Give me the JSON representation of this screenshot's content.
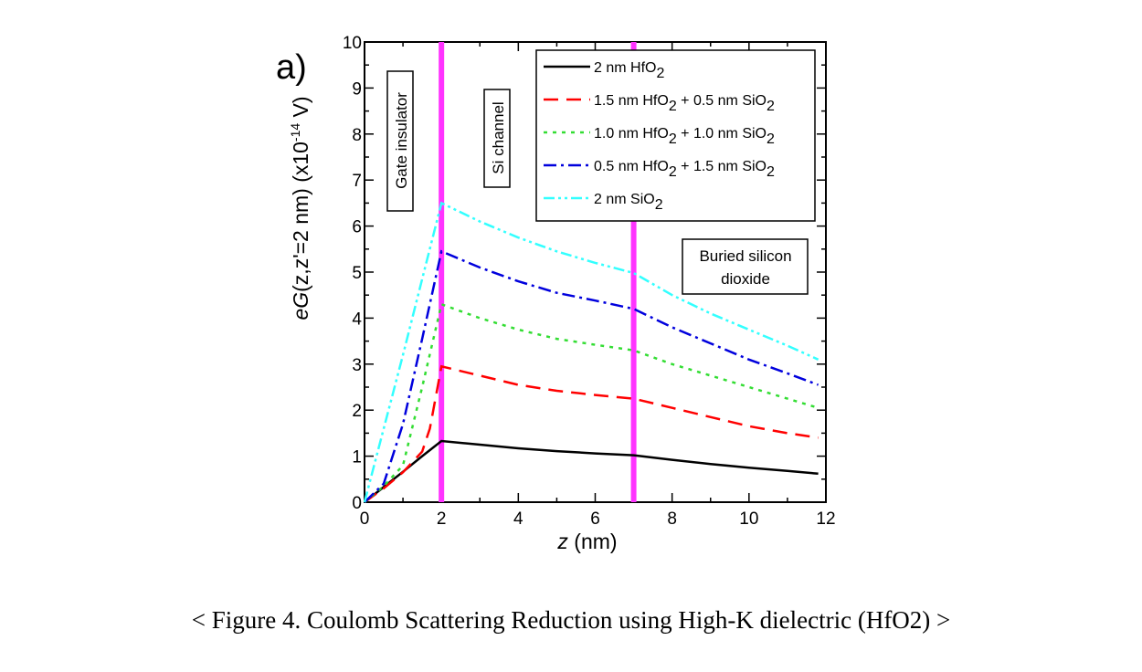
{
  "panel_label": "a)",
  "caption": "< Figure 4. Coulomb Scattering Reduction using High-K dielectric (HfO2) >",
  "chart_data": {
    "type": "line",
    "title": "",
    "xlabel": {
      "italic": "z",
      "rest": " (nm)"
    },
    "ylabel": {
      "italic": "eG",
      "rest": "(z,z'=2 nm) (x10",
      "sup": "-14",
      "tail": " V)"
    },
    "xlim": [
      0,
      12
    ],
    "ylim": [
      0,
      10
    ],
    "x_ticks": [
      0,
      2,
      4,
      6,
      8,
      10,
      12
    ],
    "y_ticks": [
      0,
      1,
      2,
      3,
      4,
      5,
      6,
      7,
      8,
      9,
      10
    ],
    "vertical_markers": [
      {
        "x": 2,
        "color": "#ff33ff"
      },
      {
        "x": 7,
        "color": "#ff33ff"
      }
    ],
    "region_labels": [
      {
        "text": "Gate insulator",
        "orientation": "vertical"
      },
      {
        "text": "Si channel",
        "orientation": "vertical"
      },
      {
        "text": "Buried silicon",
        "text2": "dioxide",
        "orientation": "horizontal"
      }
    ],
    "series": [
      {
        "name": "2 nm HfO2",
        "legend": {
          "pre": "2 nm HfO",
          "sub": "2",
          "mid": "",
          "sub2": ""
        },
        "color": "#000000",
        "dash": "solid",
        "x": [
          0,
          0.5,
          1.0,
          1.5,
          2.0,
          3.0,
          4.0,
          5.0,
          6.0,
          7.0,
          8.0,
          9.0,
          10.0,
          11.0,
          11.8
        ],
        "y": [
          0,
          0.33,
          0.66,
          1.0,
          1.33,
          1.25,
          1.17,
          1.11,
          1.06,
          1.02,
          0.92,
          0.83,
          0.75,
          0.68,
          0.62
        ]
      },
      {
        "name": "1.5 nm HfO2 + 0.5 nm SiO2",
        "legend": {
          "pre": "1.5 nm HfO",
          "sub": "2",
          "mid": " + 0.5 nm SiO",
          "sub2": "2"
        },
        "color": "#ff0000",
        "dash": "dashed",
        "x": [
          0,
          0.5,
          1.0,
          1.5,
          1.7,
          2.0,
          3.0,
          4.0,
          5.0,
          6.0,
          7.0,
          8.0,
          9.0,
          10.0,
          11.0,
          11.8
        ],
        "y": [
          0,
          0.3,
          0.65,
          1.1,
          1.6,
          2.95,
          2.75,
          2.55,
          2.42,
          2.33,
          2.25,
          2.05,
          1.85,
          1.65,
          1.5,
          1.4
        ]
      },
      {
        "name": "1.0 nm HfO2 + 1.0 nm SiO2",
        "legend": {
          "pre": "1.0 nm HfO",
          "sub": "2",
          "mid": " + 1.0 nm SiO",
          "sub2": "2"
        },
        "color": "#33dd33",
        "dash": "dotted",
        "x": [
          0,
          0.5,
          1.0,
          1.5,
          2.0,
          3.0,
          4.0,
          5.0,
          6.0,
          7.0,
          8.0,
          9.0,
          10.0,
          11.0,
          11.8
        ],
        "y": [
          0,
          0.35,
          0.8,
          2.5,
          4.3,
          4.0,
          3.75,
          3.55,
          3.42,
          3.3,
          3.0,
          2.75,
          2.5,
          2.25,
          2.05
        ]
      },
      {
        "name": "0.5 nm HfO2 + 1.5 nm SiO2",
        "legend": {
          "pre": "0.5 nm HfO",
          "sub": "2",
          "mid": " + 1.5 nm SiO",
          "sub2": "2"
        },
        "color": "#0000dd",
        "dash": "dashdot",
        "x": [
          0,
          0.5,
          1.0,
          1.5,
          2.0,
          3.0,
          4.0,
          5.0,
          6.0,
          7.0,
          8.0,
          9.0,
          10.0,
          11.0,
          11.8
        ],
        "y": [
          0,
          0.4,
          1.7,
          3.55,
          5.45,
          5.1,
          4.8,
          4.55,
          4.38,
          4.2,
          3.8,
          3.45,
          3.1,
          2.8,
          2.55
        ]
      },
      {
        "name": "2 nm SiO2",
        "legend": {
          "pre": "2 nm SiO",
          "sub": "2",
          "mid": "",
          "sub2": ""
        },
        "color": "#33ffff",
        "dash": "dashdotdot",
        "x": [
          0,
          0.5,
          1.0,
          1.5,
          2.0,
          3.0,
          4.0,
          5.0,
          6.0,
          7.0,
          8.0,
          9.0,
          10.0,
          11.0,
          11.8
        ],
        "y": [
          0,
          1.6,
          3.2,
          4.85,
          6.5,
          6.1,
          5.75,
          5.45,
          5.2,
          4.98,
          4.5,
          4.1,
          3.75,
          3.4,
          3.1
        ]
      }
    ]
  }
}
